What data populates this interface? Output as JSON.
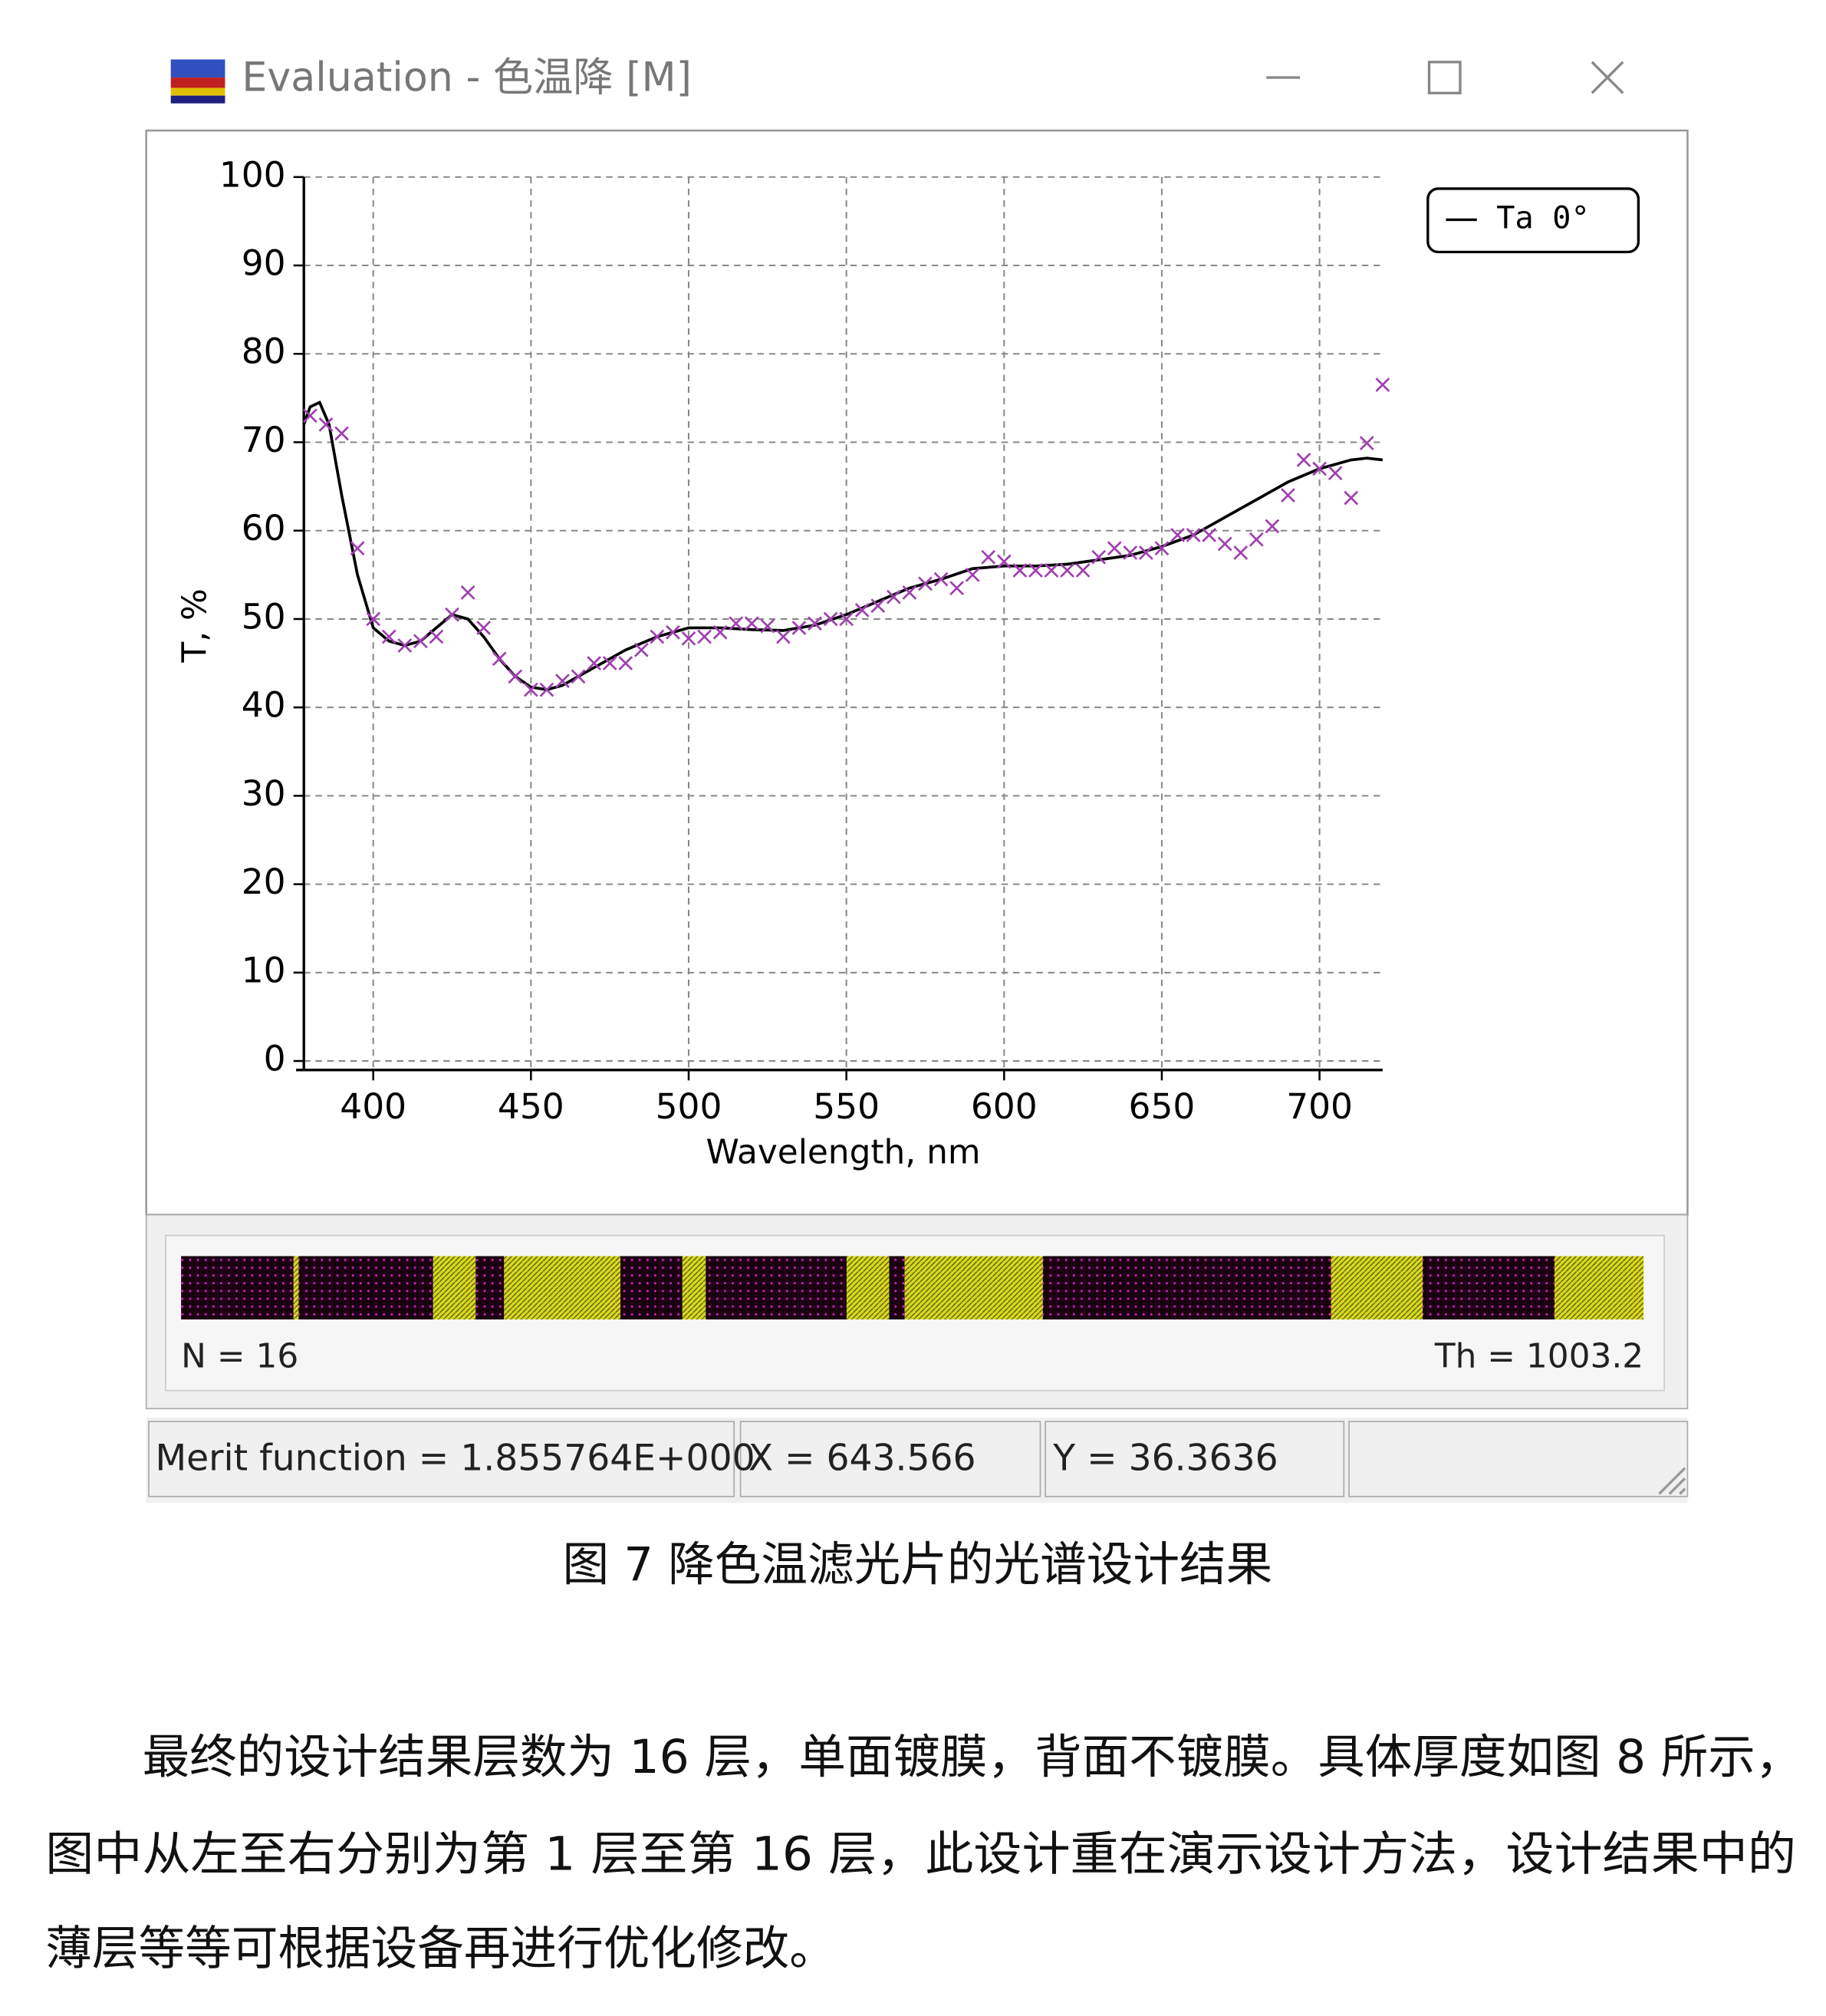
{
  "window": {
    "title": "Evaluation - 色温降 [M]"
  },
  "chart_data": {
    "type": "line",
    "xlabel": "Wavelength, nm",
    "ylabel": "T, %",
    "xlim": [
      378,
      720
    ],
    "ylim": [
      0,
      100
    ],
    "xticks": [
      400,
      450,
      500,
      550,
      600,
      650,
      700
    ],
    "yticks": [
      0,
      10,
      20,
      30,
      40,
      50,
      60,
      70,
      80,
      90,
      100
    ],
    "grid": true,
    "legend": "upper right",
    "series": [
      {
        "name": "Ta 0°",
        "color": "#000000",
        "x": [
          378,
          380,
          383,
          386,
          390,
          395,
          400,
          405,
          410,
          415,
          420,
          425,
          430,
          435,
          440,
          445,
          450,
          455,
          460,
          465,
          470,
          480,
          490,
          500,
          510,
          520,
          530,
          540,
          550,
          560,
          570,
          580,
          590,
          600,
          610,
          620,
          630,
          640,
          650,
          660,
          670,
          680,
          690,
          700,
          710,
          715,
          720
        ],
        "values": [
          72,
          74,
          74.5,
          72,
          64,
          55,
          49,
          47.5,
          47,
          47.5,
          49,
          50.5,
          50,
          48,
          45.5,
          43.5,
          42.3,
          42,
          42.5,
          43.5,
          44.5,
          46.5,
          48,
          49,
          49,
          48.8,
          48.7,
          49.3,
          50.5,
          52,
          53.5,
          54.5,
          55.7,
          56,
          56,
          56.2,
          56.7,
          57.2,
          58.2,
          59.5,
          61.5,
          63.5,
          65.5,
          67,
          68,
          68.2,
          68
        ]
      },
      {
        "marker": "x",
        "color": "#a040b0",
        "x": [
          380,
          385,
          390,
          395,
          400,
          405,
          410,
          415,
          420,
          425,
          430,
          435,
          440,
          445,
          450,
          455,
          460,
          465,
          470,
          475,
          480,
          485,
          490,
          495,
          500,
          505,
          510,
          515,
          520,
          525,
          530,
          535,
          540,
          545,
          550,
          555,
          560,
          565,
          570,
          575,
          580,
          585,
          590,
          595,
          600,
          605,
          610,
          615,
          620,
          625,
          630,
          635,
          640,
          645,
          650,
          655,
          660,
          665,
          670,
          675,
          680,
          685,
          690,
          695,
          700,
          705,
          710,
          715,
          720
        ],
        "values": [
          73,
          72,
          71,
          58,
          50,
          48,
          47,
          47.5,
          48,
          50.5,
          53,
          49,
          45.5,
          43.5,
          42,
          42,
          43,
          43.5,
          45,
          45,
          45,
          46.5,
          48,
          48.5,
          47.8,
          48,
          48.5,
          49.5,
          49.5,
          49.2,
          48,
          49,
          49.5,
          50,
          50,
          51,
          51.5,
          52.5,
          53,
          54,
          54.5,
          53.5,
          55,
          57,
          56.5,
          55.5,
          55.5,
          55.5,
          55.5,
          55.5,
          57,
          58,
          57.5,
          57.5,
          58,
          59.5,
          59.5,
          59.5,
          58.5,
          57.5,
          59,
          60.5,
          64,
          68,
          67,
          66.5,
          63.7,
          69.9,
          76.5
        ]
      }
    ]
  },
  "layers": {
    "thicknesses": [
      77.1,
      3.5,
      92.2,
      29.2,
      19.5,
      79.8,
      42.5,
      16.0,
      96.6,
      29.2,
      10.6,
      94.8,
      197.6,
      62.9,
      90.4,
      61.1
    ],
    "count_label": "N = 16",
    "total_label": "Th = 1003.2"
  },
  "status": {
    "merit": "Merit function =  1.855764E+000",
    "x": "X = 643.566",
    "y": "Y = 36.3636"
  },
  "caption": "图 7  降色温滤光片的光谱设计结果",
  "paragraph": [
    "最终的设计结果层数为 16 层，单面镀膜，背面不镀膜。具体厚度如图 8 所示，",
    "图中从左至右分别为第 1 层至第 16 层，此设计重在演示设计方法，设计结果中的",
    "薄层等等可根据设备再进行优化修改。"
  ]
}
